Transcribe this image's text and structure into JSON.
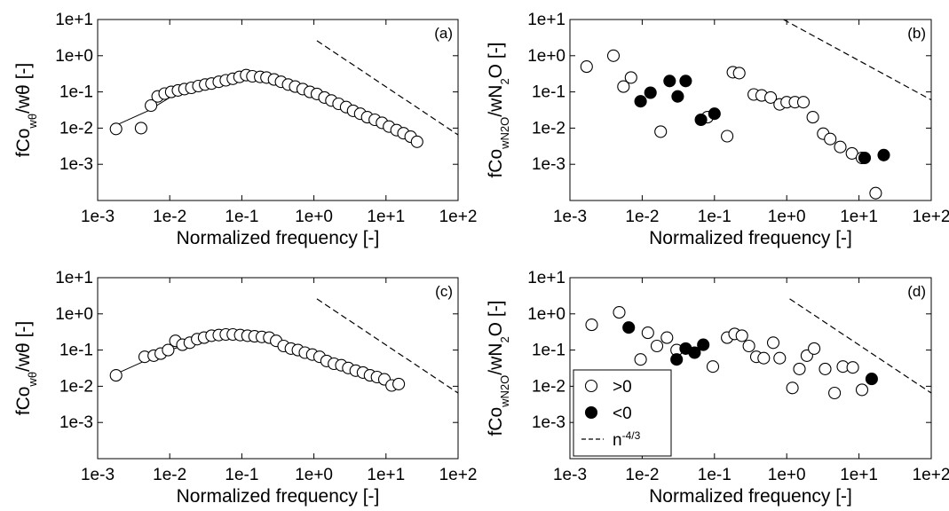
{
  "chart_data": [
    {
      "type": "scatter",
      "panel_label": "(a)",
      "x_scale": "log",
      "y_scale": "log",
      "xlim": [
        0.001,
        100
      ],
      "ylim": [
        0.0001,
        10
      ],
      "xticks": [
        "1e-3",
        "1e-2",
        "1e-1",
        "1e+0",
        "1e+1",
        "1e+2"
      ],
      "yticks": [
        "1e-3",
        "1e-2",
        "1e-1",
        "1e+0",
        "1e+1"
      ],
      "xlabel": "Normalized frequency [-]",
      "ylabel": {
        "main": "fCo",
        "sub": "wθ",
        "rest": "/wθ [-]"
      },
      "grid": false,
      "series": [
        {
          "kind": "open",
          "x": [
            0.0018,
            0.004,
            0.0055,
            0.0068,
            0.0085,
            0.0105,
            0.013,
            0.016,
            0.02,
            0.025,
            0.031,
            0.038,
            0.048,
            0.06,
            0.075,
            0.093,
            0.115,
            0.14,
            0.18,
            0.22,
            0.28,
            0.35,
            0.44,
            0.55,
            0.7,
            0.88,
            1.1,
            1.4,
            1.75,
            2.2,
            2.8,
            3.5,
            4.4,
            5.5,
            7,
            8.8,
            11,
            14,
            17.5,
            22,
            27
          ],
          "y": [
            0.0095,
            0.01,
            0.042,
            0.075,
            0.09,
            0.1,
            0.11,
            0.12,
            0.13,
            0.145,
            0.16,
            0.17,
            0.19,
            0.21,
            0.23,
            0.26,
            0.29,
            0.27,
            0.26,
            0.25,
            0.22,
            0.19,
            0.16,
            0.14,
            0.12,
            0.1,
            0.088,
            0.07,
            0.058,
            0.047,
            0.038,
            0.03,
            0.025,
            0.02,
            0.017,
            0.014,
            0.011,
            0.0088,
            0.0072,
            0.0058,
            0.0042
          ]
        },
        {
          "kind": "fit",
          "x": [
            0.0018,
            0.005,
            0.01,
            0.03,
            0.1,
            0.3,
            1,
            3,
            10,
            27
          ],
          "y": [
            0.012,
            0.03,
            0.07,
            0.15,
            0.25,
            0.23,
            0.1,
            0.033,
            0.012,
            0.0035
          ]
        },
        {
          "kind": "reference",
          "x": [
            1.1,
            100
          ],
          "y": [
            2.6,
            0.0065
          ]
        }
      ]
    },
    {
      "type": "scatter",
      "panel_label": "(b)",
      "x_scale": "log",
      "y_scale": "log",
      "xlim": [
        0.001,
        100
      ],
      "ylim": [
        0.0001,
        10
      ],
      "xticks": [
        "1e-3",
        "1e-2",
        "1e-1",
        "1e+0",
        "1e+1",
        "1e+2"
      ],
      "yticks": [
        "1e-3",
        "1e-2",
        "1e-1",
        "1e+0",
        "1e+1"
      ],
      "xlabel": "Normalized frequency [-]",
      "ylabel": {
        "main": "fCo",
        "sub": "wN2O",
        "rest": "/wN",
        "sub2": "2",
        "rest2": "O [-]"
      },
      "grid": false,
      "series": [
        {
          "kind": "open",
          "x": [
            0.0017,
            0.004,
            0.0055,
            0.007,
            0.018,
            0.08,
            0.15,
            0.18,
            0.22,
            0.35,
            0.45,
            0.6,
            0.8,
            1.0,
            1.3,
            1.7,
            2.3,
            3.2,
            4,
            5.5,
            8,
            11,
            17
          ],
          "y": [
            0.5,
            1.0,
            0.14,
            0.25,
            0.008,
            0.02,
            0.006,
            0.35,
            0.33,
            0.085,
            0.08,
            0.07,
            0.045,
            0.052,
            0.052,
            0.052,
            0.02,
            0.007,
            0.005,
            0.003,
            0.002,
            0.0015,
            0.00016
          ]
        },
        {
          "kind": "filled",
          "x": [
            0.0095,
            0.013,
            0.024,
            0.031,
            0.04,
            0.065,
            0.1,
            12,
            22
          ],
          "y": [
            0.055,
            0.095,
            0.2,
            0.075,
            0.2,
            0.017,
            0.025,
            0.0015,
            0.0018
          ]
        },
        {
          "kind": "reference",
          "x": [
            0.9,
            100
          ],
          "y": [
            10,
            0.06
          ]
        }
      ]
    },
    {
      "type": "scatter",
      "panel_label": "(c)",
      "x_scale": "log",
      "y_scale": "log",
      "xlim": [
        0.001,
        100
      ],
      "ylim": [
        0.0001,
        10
      ],
      "xticks": [
        "1e-3",
        "1e-2",
        "1e-1",
        "1e+0",
        "1e+1",
        "1e+2"
      ],
      "yticks": [
        "1e-3",
        "1e-2",
        "1e-1",
        "1e+0",
        "1e+1"
      ],
      "xlabel": "Normalized frequency [-]",
      "ylabel": {
        "main": "fCo",
        "sub": "wθ",
        "rest": "/wθ [-]"
      },
      "grid": false,
      "series": [
        {
          "kind": "open",
          "x": [
            0.0018,
            0.0045,
            0.006,
            0.0075,
            0.0095,
            0.012,
            0.015,
            0.019,
            0.024,
            0.03,
            0.038,
            0.048,
            0.06,
            0.075,
            0.095,
            0.12,
            0.15,
            0.19,
            0.24,
            0.3,
            0.38,
            0.48,
            0.6,
            0.75,
            0.95,
            1.2,
            1.5,
            1.9,
            2.4,
            3,
            3.8,
            4.8,
            6,
            7.5,
            9.5,
            12,
            15
          ],
          "y": [
            0.02,
            0.065,
            0.07,
            0.08,
            0.1,
            0.18,
            0.14,
            0.16,
            0.2,
            0.22,
            0.25,
            0.26,
            0.27,
            0.27,
            0.26,
            0.25,
            0.24,
            0.23,
            0.22,
            0.18,
            0.13,
            0.11,
            0.1,
            0.085,
            0.075,
            0.065,
            0.05,
            0.042,
            0.038,
            0.032,
            0.027,
            0.024,
            0.02,
            0.018,
            0.0155,
            0.0105,
            0.0115
          ]
        },
        {
          "kind": "fit",
          "x": [
            0.0018,
            0.005,
            0.01,
            0.03,
            0.1,
            0.3,
            1,
            3,
            10,
            15
          ],
          "y": [
            0.022,
            0.055,
            0.1,
            0.2,
            0.25,
            0.19,
            0.09,
            0.035,
            0.013,
            0.011
          ]
        },
        {
          "kind": "reference",
          "x": [
            1.1,
            100
          ],
          "y": [
            2.6,
            0.0065
          ]
        }
      ]
    },
    {
      "type": "scatter",
      "panel_label": "(d)",
      "x_scale": "log",
      "y_scale": "log",
      "xlim": [
        0.001,
        100
      ],
      "ylim": [
        0.0001,
        10
      ],
      "xticks": [
        "1e-3",
        "1e-2",
        "1e-1",
        "1e+0",
        "1e+1",
        "1e+2"
      ],
      "yticks": [
        "1e-3",
        "1e-2",
        "1e-1",
        "1e+0",
        "1e+1"
      ],
      "xlabel": "Normalized frequency [-]",
      "ylabel": {
        "main": "fCo",
        "sub": "wN2O",
        "rest": "/wN",
        "sub2": "2",
        "rest2": "O [-]"
      },
      "grid": false,
      "legend": {
        "placement": "bottom-left",
        "entries": [
          {
            "kind": "open",
            "label": ">0"
          },
          {
            "kind": "filled",
            "label": "<0"
          },
          {
            "kind": "reference",
            "label": "n",
            "label_sup": "-4/3"
          }
        ]
      },
      "series": [
        {
          "kind": "open",
          "x": [
            0.002,
            0.0048,
            0.0095,
            0.012,
            0.016,
            0.022,
            0.03,
            0.095,
            0.15,
            0.19,
            0.24,
            0.3,
            0.38,
            0.48,
            0.65,
            0.8,
            1.2,
            1.5,
            1.9,
            2.4,
            3.4,
            4.6,
            6,
            8.2,
            11
          ],
          "y": [
            0.5,
            1.1,
            0.055,
            0.3,
            0.13,
            0.22,
            0.1,
            0.035,
            0.22,
            0.28,
            0.25,
            0.13,
            0.065,
            0.06,
            0.16,
            0.06,
            0.009,
            0.03,
            0.07,
            0.11,
            0.03,
            0.0065,
            0.035,
            0.033,
            0.008
          ]
        },
        {
          "kind": "filled",
          "x": [
            0.0065,
            0.03,
            0.04,
            0.053,
            0.07,
            15
          ],
          "y": [
            0.42,
            0.055,
            0.11,
            0.085,
            0.14,
            0.016
          ]
        },
        {
          "kind": "reference",
          "x": [
            1.1,
            100
          ],
          "y": [
            2.6,
            0.0065
          ]
        }
      ]
    }
  ]
}
